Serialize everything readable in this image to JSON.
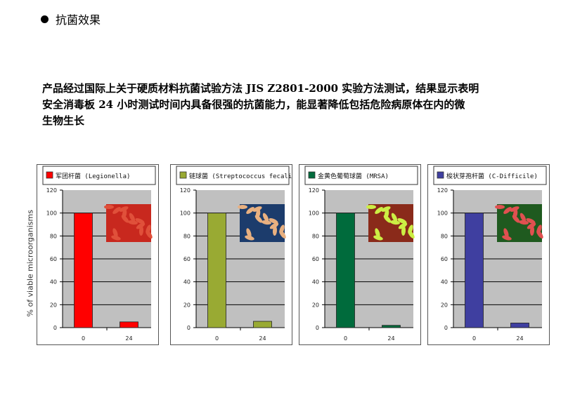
{
  "section": {
    "bullet_icon": "filled-circle-icon",
    "title": "抗菌效果"
  },
  "paragraph": {
    "lines": [
      "产品经过国际上关于硬质材料抗菌试验方法 JIS  Z2801-2000 实验方法测试，结果显示表明",
      "安全消毒板 24 小时测试时间内具备很强的抗菌能力，能显著降低包括危险病原体在内的微",
      "生物生长"
    ]
  },
  "chart_data": [
    {
      "type": "bar",
      "legend": "军团杆菌 (Legionella)",
      "color": "#ff0000",
      "categories": [
        "0",
        "24"
      ],
      "values": [
        100,
        5
      ],
      "ylabel": "% of viable microorganisms",
      "ylim": [
        0,
        120
      ],
      "yticks": [
        "0",
        "20",
        "40",
        "60",
        "80",
        "100",
        "120"
      ],
      "grid": true,
      "legend_position": "top",
      "image": "legionella-micrograph",
      "image_colors": [
        "#c8281e",
        "#e0503a"
      ]
    },
    {
      "type": "bar",
      "legend": "链球菌 (Streptococcus fecalis)",
      "color": "#99aa33",
      "categories": [
        "0",
        "24"
      ],
      "values": [
        100,
        5.5
      ],
      "ylim": [
        0,
        120
      ],
      "yticks": [
        "0",
        "20",
        "40",
        "60",
        "80",
        "100",
        "120"
      ],
      "grid": true,
      "legend_position": "top",
      "image": "streptococcus-micrograph",
      "image_colors": [
        "#1c3c6c",
        "#e8b080"
      ]
    },
    {
      "type": "bar",
      "legend": "金黄色葡萄球菌 (MRSA)",
      "color": "#006b3c",
      "categories": [
        "0",
        "24"
      ],
      "values": [
        100,
        2
      ],
      "ylim": [
        0,
        120
      ],
      "yticks": [
        "0",
        "20",
        "40",
        "60",
        "80",
        "100",
        "120"
      ],
      "grid": true,
      "legend_position": "top",
      "image": "mrsa-micrograph",
      "image_colors": [
        "#8a2a1a",
        "#ccee44"
      ]
    },
    {
      "type": "bar",
      "legend": "梭状芽孢杆菌 (C-Difficile)",
      "color": "#3f3fa0",
      "categories": [
        "0",
        "24"
      ],
      "values": [
        100,
        4
      ],
      "ylim": [
        0,
        120
      ],
      "yticks": [
        "0",
        "20",
        "40",
        "60",
        "80",
        "100",
        "120"
      ],
      "grid": true,
      "legend_position": "top",
      "image": "c-difficile-micrograph",
      "image_colors": [
        "#1f5a1f",
        "#e05050"
      ]
    }
  ]
}
